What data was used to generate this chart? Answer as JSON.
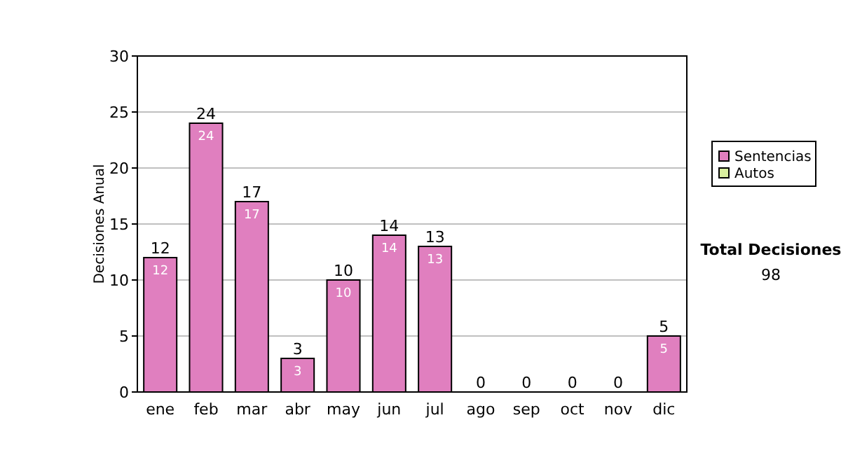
{
  "chart_data": {
    "type": "bar",
    "stacked": true,
    "ylabel": "Decisiones Anual",
    "categories": [
      "ene",
      "feb",
      "mar",
      "abr",
      "may",
      "jun",
      "jul",
      "ago",
      "sep",
      "oct",
      "nov",
      "dic"
    ],
    "series": [
      {
        "name": "Sentencias",
        "color": "#e07fbf",
        "values": [
          12,
          24,
          17,
          3,
          10,
          14,
          13,
          0,
          0,
          0,
          0,
          5
        ],
        "value_labels": [
          "12",
          "24",
          "17",
          "3",
          "10",
          "14",
          "13",
          null,
          null,
          null,
          null,
          "5"
        ]
      },
      {
        "name": "Autos",
        "color": "#d9ef9f",
        "values": [
          0,
          0,
          0,
          0,
          0,
          0,
          0,
          0,
          0,
          0,
          0,
          0
        ]
      }
    ],
    "totals": [
      "12",
      "24",
      "17",
      "3",
      "10",
      "14",
      "13",
      "0",
      "0",
      "0",
      "0",
      "5"
    ],
    "ylim": [
      0,
      30
    ],
    "yticks": [
      0,
      5,
      10,
      15,
      20,
      25,
      30
    ],
    "grid": "y",
    "legend": "right",
    "annotations": [
      "Total Decisiones",
      "98"
    ]
  }
}
